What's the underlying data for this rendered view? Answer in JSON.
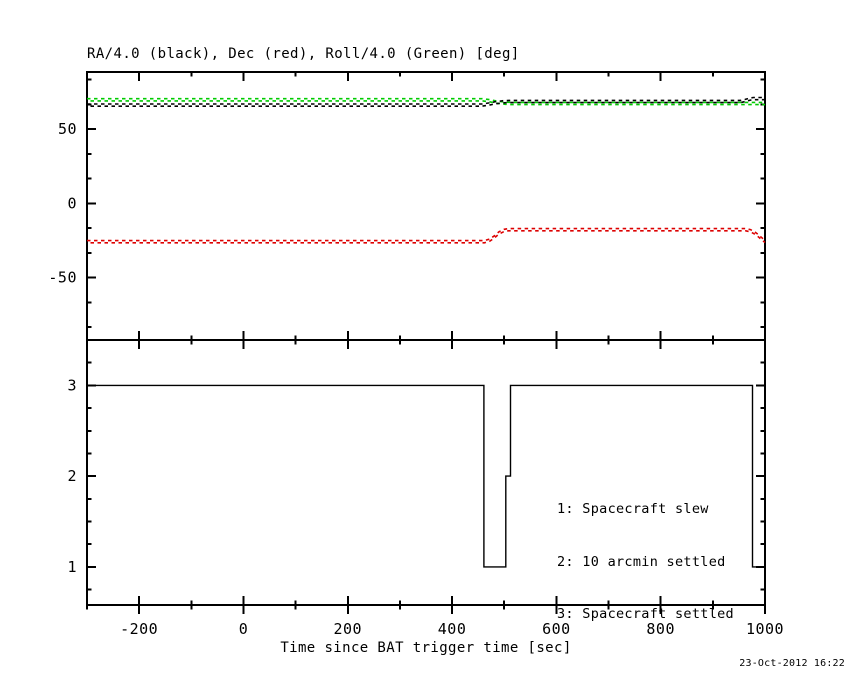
{
  "title": "RA/4.0 (black), Dec (red), Roll/4.0 (Green) [deg]",
  "timestamp": "23-Oct-2012 16:22",
  "colors": {
    "black": "#000000",
    "red": "#dd0000",
    "green": "#00cc00"
  },
  "chart_data": [
    {
      "name": "attitude-panel",
      "type": "line",
      "title": "RA/4.0 (black), Dec (red), Roll/4.0 (Green) [deg]",
      "xlabel": "",
      "ylabel": "deg",
      "xlim": [
        -300,
        1000
      ],
      "ylim": [
        -92,
        88.5
      ],
      "grid": false,
      "yticks_major": [
        50,
        0,
        -50
      ],
      "ytick_labels": [
        "50",
        "0",
        "-50"
      ],
      "yminor_step": 16.6667,
      "xticks_major": [
        -200,
        0,
        200,
        400,
        600,
        800,
        1000
      ],
      "xminor_step": 100,
      "line_style": "dotted",
      "series": [
        {
          "name": "Roll/4.0",
          "color": "#00cc00",
          "style": "dotted",
          "points": [
            [
              -300,
              69.8
            ],
            [
              458,
              69.8
            ],
            [
              472,
              69.2
            ],
            [
              488,
              68.1
            ],
            [
              502,
              67.5
            ],
            [
              514,
              67.3
            ],
            [
              1000,
              67.3
            ]
          ]
        },
        {
          "name": "RA/4.0",
          "color": "#000000",
          "style": "dotted",
          "points": [
            [
              -300,
              66.2
            ],
            [
              457,
              66.2
            ],
            [
              470,
              66.9
            ],
            [
              485,
              67.9
            ],
            [
              500,
              68.5
            ],
            [
              512,
              68.6
            ],
            [
              953,
              68.6
            ],
            [
              962,
              69.3
            ],
            [
              972,
              70.3
            ],
            [
              978,
              70.6
            ],
            [
              1000,
              70.6
            ]
          ]
        },
        {
          "name": "Dec",
          "color": "#dd0000",
          "style": "dotted",
          "points": [
            [
              -300,
              -25.8
            ],
            [
              462,
              -25.8
            ],
            [
              472,
              -24.8
            ],
            [
              480,
              -22.8
            ],
            [
              490,
              -19.9
            ],
            [
              500,
              -18.2
            ],
            [
              508,
              -17.7
            ],
            [
              963,
              -17.7
            ],
            [
              972,
              -18.4
            ],
            [
              980,
              -19.9
            ],
            [
              987,
              -21.7
            ],
            [
              994,
              -23.9
            ],
            [
              1000,
              -25.6
            ]
          ]
        }
      ]
    },
    {
      "name": "settling-status-panel",
      "type": "step",
      "xlabel": "Time since BAT trigger time [sec]",
      "xlim": [
        -300,
        1000
      ],
      "ylim": [
        0.58,
        3.5
      ],
      "grid": false,
      "yticks_major": [
        1,
        2,
        3
      ],
      "ytick_labels": [
        "1",
        "2",
        "3"
      ],
      "yminor_step": 0.25,
      "xticks_major": [
        -200,
        0,
        200,
        400,
        600,
        800,
        1000
      ],
      "xtick_labels": [
        "-200",
        "0",
        "200",
        "400",
        "600",
        "800",
        "1000"
      ],
      "xminor_step": 100,
      "legend_position": "middle-right",
      "legend": [
        "1: Spacecraft slew",
        "2: 10 arcmin settled",
        "3: Spacecraft settled"
      ],
      "series": [
        {
          "name": "settling-status",
          "color": "#000000",
          "style": "solid",
          "points": [
            [
              -300,
              3
            ],
            [
              461,
              3
            ],
            [
              461,
              1
            ],
            [
              503,
              1
            ],
            [
              503,
              2
            ],
            [
              512,
              2
            ],
            [
              512,
              3
            ],
            [
              976,
              3
            ],
            [
              976,
              1
            ],
            [
              1000,
              1
            ]
          ]
        }
      ]
    }
  ]
}
